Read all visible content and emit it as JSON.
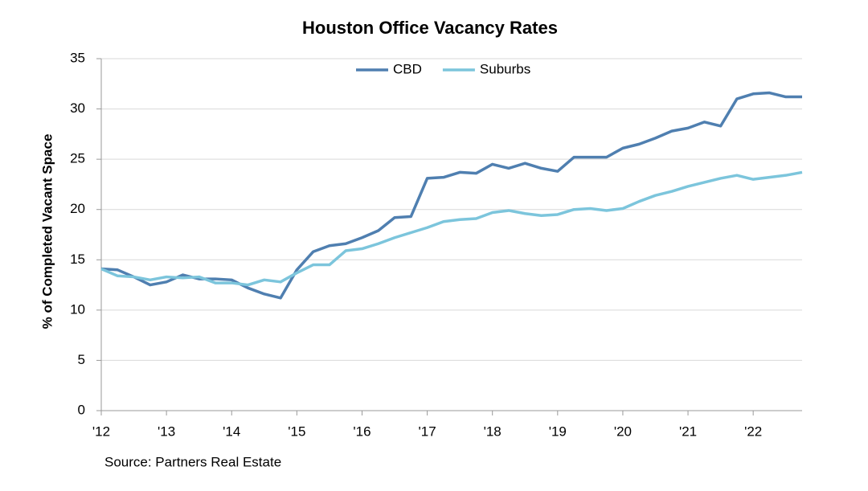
{
  "chart_data": {
    "type": "line",
    "title": "Houston Office Vacancy Rates",
    "y_label": "% of Completed Vacant Space",
    "source": "Source: Partners Real Estate",
    "x": [
      2012,
      2012.25,
      2012.5,
      2012.75,
      2013,
      2013.25,
      2013.5,
      2013.75,
      2014,
      2014.25,
      2014.5,
      2014.75,
      2015,
      2015.25,
      2015.5,
      2015.75,
      2016,
      2016.25,
      2016.5,
      2016.75,
      2017,
      2017.25,
      2017.5,
      2017.75,
      2018,
      2018.25,
      2018.5,
      2018.75,
      2019,
      2019.25,
      2019.5,
      2019.75,
      2020,
      2020.25,
      2020.5,
      2020.75,
      2021,
      2021.25,
      2021.5,
      2021.75,
      2022,
      2022.25,
      2022.5,
      2022.75
    ],
    "series": [
      {
        "name": "CBD",
        "color": "#4f7fb0",
        "values": [
          14.1,
          14.0,
          13.3,
          12.5,
          12.8,
          13.5,
          13.1,
          13.1,
          13.0,
          12.2,
          11.6,
          11.2,
          14.0,
          15.8,
          16.4,
          16.6,
          17.2,
          17.9,
          19.2,
          19.3,
          23.1,
          23.2,
          23.7,
          23.6,
          24.5,
          24.1,
          24.6,
          24.1,
          23.8,
          25.2,
          25.2,
          25.2,
          26.1,
          26.5,
          27.1,
          27.8,
          28.1,
          28.7,
          28.3,
          31.0,
          31.5,
          31.6,
          31.2,
          31.2
        ]
      },
      {
        "name": "Suburbs",
        "color": "#7cc5dc",
        "values": [
          14.1,
          13.4,
          13.3,
          13.0,
          13.3,
          13.2,
          13.3,
          12.7,
          12.7,
          12.5,
          13.0,
          12.8,
          13.7,
          14.5,
          14.5,
          15.9,
          16.1,
          16.6,
          17.2,
          17.7,
          18.2,
          18.8,
          19.0,
          19.1,
          19.7,
          19.9,
          19.6,
          19.4,
          19.5,
          20.0,
          20.1,
          19.9,
          20.1,
          20.8,
          21.4,
          21.8,
          22.3,
          22.7,
          23.1,
          23.4,
          23.0,
          23.2,
          23.4,
          23.7
        ]
      }
    ],
    "xlim": [
      2012,
      2022.75
    ],
    "xticks": [
      {
        "value": 2012,
        "label": "'12"
      },
      {
        "value": 2013,
        "label": "'13"
      },
      {
        "value": 2014,
        "label": "'14"
      },
      {
        "value": 2015,
        "label": "'15"
      },
      {
        "value": 2016,
        "label": "'16"
      },
      {
        "value": 2017,
        "label": "'17"
      },
      {
        "value": 2018,
        "label": "'18"
      },
      {
        "value": 2019,
        "label": "'19"
      },
      {
        "value": 2020,
        "label": "'20"
      },
      {
        "value": 2021,
        "label": "'21"
      },
      {
        "value": 2022,
        "label": "'22"
      }
    ],
    "ylim": [
      0,
      35
    ],
    "yticks": [
      0,
      5,
      10,
      15,
      20,
      25,
      30,
      35
    ],
    "grid": true,
    "legend": "top"
  }
}
